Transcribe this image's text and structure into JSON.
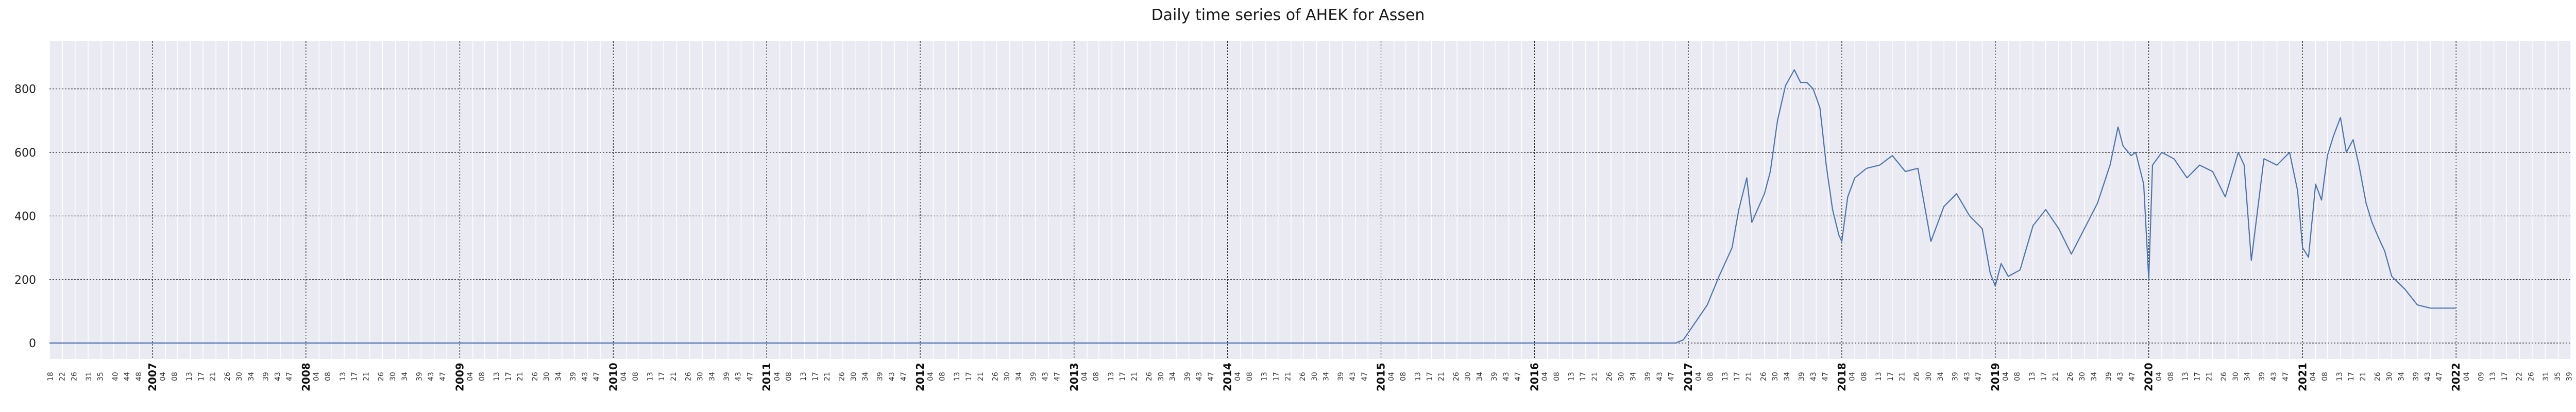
{
  "chart_data": {
    "type": "line",
    "title": "Daily time series of AHEK for Assen",
    "xlabel": "",
    "ylabel": "",
    "ylim": [
      -50,
      950
    ],
    "yticks": [
      0,
      200,
      400,
      600,
      800
    ],
    "xlim": [
      "2006-05-01",
      "2022-10-01"
    ],
    "grid": true,
    "legend": "none",
    "colors": {
      "line": "#4c72b0",
      "plot_background": "#eaeaf2",
      "grid_major": "#222222"
    },
    "year_ticks": [
      "2007",
      "2008",
      "2009",
      "2010",
      "2011",
      "2012",
      "2013",
      "2014",
      "2015",
      "2016",
      "2017",
      "2018",
      "2019",
      "2020",
      "2021",
      "2022"
    ],
    "week_ticks_per_year": [
      "04",
      "08",
      "13",
      "17",
      "21",
      "26",
      "30",
      "34",
      "39",
      "43",
      "47"
    ],
    "week_ticks_2006": [
      "18",
      "22",
      "26",
      "31",
      "35",
      "40",
      "44",
      "48"
    ],
    "week_ticks_2022": [
      "04",
      "09",
      "13",
      "17",
      "22",
      "26",
      "31",
      "35",
      "39"
    ],
    "series": [
      {
        "x": [
          "2006-05-01",
          "2016-12-01",
          "2016-12-20",
          "2017-01-15",
          "2017-02-15",
          "2017-03-15",
          "2017-04-15",
          "2017-05-01",
          "2017-05-20",
          "2017-06-01",
          "2017-07-01",
          "2017-07-15",
          "2017-08-01",
          "2017-08-20",
          "2017-09-10",
          "2017-09-25",
          "2017-10-10",
          "2017-10-25",
          "2017-11-10",
          "2017-11-25",
          "2017-12-10",
          "2017-12-25",
          "2018-01-01",
          "2018-01-15",
          "2018-02-01",
          "2018-03-01",
          "2018-04-01",
          "2018-05-01",
          "2018-06-01",
          "2018-07-01",
          "2018-08-01",
          "2018-09-01",
          "2018-10-01",
          "2018-11-01",
          "2018-12-01",
          "2018-12-20",
          "2019-01-01",
          "2019-01-15",
          "2019-02-01",
          "2019-03-01",
          "2019-04-01",
          "2019-05-01",
          "2019-06-01",
          "2019-07-01",
          "2019-08-01",
          "2019-09-01",
          "2019-10-01",
          "2019-10-20",
          "2019-11-01",
          "2019-11-20",
          "2019-12-01",
          "2019-12-20",
          "2020-01-01",
          "2020-01-10",
          "2020-02-01",
          "2020-03-01",
          "2020-04-01",
          "2020-05-01",
          "2020-06-01",
          "2020-07-01",
          "2020-08-01",
          "2020-08-15",
          "2020-09-01",
          "2020-10-01",
          "2020-11-01",
          "2020-12-01",
          "2020-12-20",
          "2021-01-01",
          "2021-01-15",
          "2021-02-01",
          "2021-02-15",
          "2021-03-01",
          "2021-03-15",
          "2021-04-01",
          "2021-04-15",
          "2021-05-01",
          "2021-05-15",
          "2021-06-01",
          "2021-06-15",
          "2021-07-01",
          "2021-07-15",
          "2021-08-01",
          "2021-09-01",
          "2021-10-01",
          "2021-11-01",
          "2021-12-01",
          "2021-12-31"
        ],
        "y": [
          0,
          0,
          10,
          60,
          120,
          210,
          300,
          420,
          520,
          380,
          470,
          540,
          700,
          810,
          860,
          820,
          820,
          800,
          740,
          560,
          420,
          340,
          320,
          460,
          520,
          550,
          560,
          590,
          540,
          550,
          320,
          430,
          470,
          400,
          360,
          220,
          180,
          250,
          210,
          230,
          370,
          420,
          360,
          280,
          360,
          440,
          560,
          680,
          620,
          590,
          600,
          500,
          200,
          560,
          600,
          580,
          520,
          560,
          540,
          460,
          600,
          560,
          260,
          580,
          560,
          600,
          480,
          300,
          270,
          500,
          450,
          590,
          650,
          710,
          600,
          640,
          560,
          440,
          380,
          330,
          290,
          210,
          170,
          120,
          110,
          110,
          110
        ]
      }
    ]
  }
}
